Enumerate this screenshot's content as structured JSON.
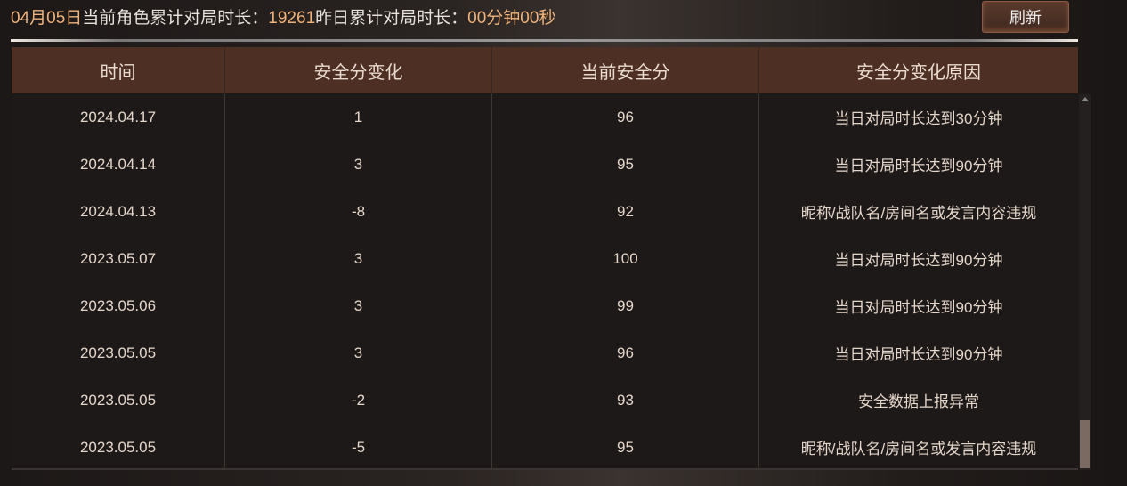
{
  "header": {
    "date": "04月05日",
    "label1": "当前角色累计对局时长：",
    "total": "19261",
    "label2": "昨日累计对局时长：",
    "yesterday": "00分钟00秒"
  },
  "refresh_label": "刷新",
  "table": {
    "columns": [
      "时间",
      "安全分变化",
      "当前安全分",
      "安全分变化原因"
    ],
    "rows": [
      [
        "2024.04.17",
        "1",
        "96",
        "当日对局时长达到30分钟"
      ],
      [
        "2024.04.14",
        "3",
        "95",
        "当日对局时长达到90分钟"
      ],
      [
        "2024.04.13",
        "-8",
        "92",
        "昵称/战队名/房间名或发言内容违规"
      ],
      [
        "2023.05.07",
        "3",
        "100",
        "当日对局时长达到90分钟"
      ],
      [
        "2023.05.06",
        "3",
        "99",
        "当日对局时长达到90分钟"
      ],
      [
        "2023.05.05",
        "3",
        "96",
        "当日对局时长达到90分钟"
      ],
      [
        "2023.05.05",
        "-2",
        "93",
        "安全数据上报异常"
      ],
      [
        "2023.05.05",
        "-5",
        "95",
        "昵称/战队名/房间名或发言内容违规"
      ]
    ]
  }
}
